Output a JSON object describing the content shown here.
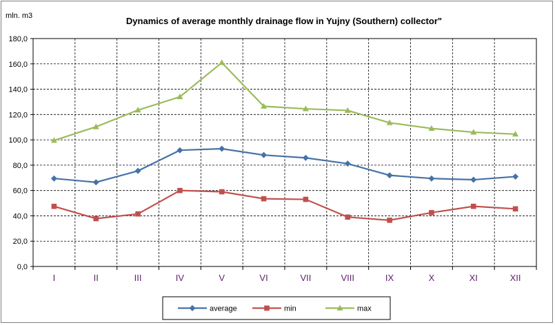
{
  "chart_data": {
    "type": "line",
    "title": "Dynamics of average monthly drainage flow in Yujny (Southern) collector\"",
    "ylabel": "mln. m3",
    "xlabel": "",
    "ylim": [
      0,
      180
    ],
    "ytick_step": 20,
    "ytick_labels": [
      "0,0",
      "20,0",
      "40,0",
      "60,0",
      "80,0",
      "100,0",
      "120,0",
      "140,0",
      "160,0",
      "180,0"
    ],
    "categories": [
      "I",
      "II",
      "III",
      "IV",
      "V",
      "VI",
      "VII",
      "VIII",
      "IX",
      "X",
      "XI",
      "XII"
    ],
    "grid": true,
    "legend_position": "bottom",
    "series": [
      {
        "name": "average",
        "color": "#4572a7",
        "marker": "diamond",
        "values": [
          69.5,
          66.5,
          75.5,
          91.8,
          93.0,
          88.0,
          85.8,
          81.2,
          72.0,
          69.5,
          68.5,
          71.0
        ]
      },
      {
        "name": "min",
        "color": "#c0504d",
        "marker": "square",
        "values": [
          47.5,
          37.8,
          41.5,
          60.0,
          59.0,
          53.5,
          53.0,
          39.0,
          36.5,
          42.5,
          47.5,
          45.5
        ]
      },
      {
        "name": "max",
        "color": "#9bbb59",
        "marker": "triangle",
        "values": [
          99.5,
          110.3,
          123.5,
          134.0,
          161.0,
          126.5,
          124.5,
          123.2,
          113.5,
          109.0,
          106.0,
          104.5
        ]
      }
    ]
  }
}
